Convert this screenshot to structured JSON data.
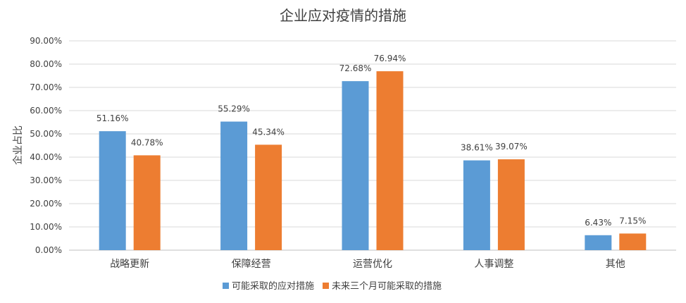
{
  "chart_data": {
    "type": "bar",
    "title": "企业应对疫情的措施",
    "xlabel": "",
    "ylabel": "企业占比",
    "categories": [
      "战略更新",
      "保障经营",
      "运营优化",
      "人事调整",
      "其他"
    ],
    "series": [
      {
        "name": "可能采取的应对措施",
        "values": [
          51.16,
          55.29,
          72.68,
          38.61,
          6.43
        ],
        "color": "#5b9bd5"
      },
      {
        "name": "未来三个月可能采取的措施",
        "values": [
          40.78,
          45.34,
          76.94,
          39.07,
          7.15
        ],
        "color": "#ed7d31"
      }
    ],
    "value_labels": [
      [
        "51.16%",
        "55.29%",
        "72.68%",
        "38.61%",
        "6.43%"
      ],
      [
        "40.78%",
        "45.34%",
        "76.94%",
        "39.07%",
        "7.15%"
      ]
    ],
    "ylim": [
      0,
      90
    ],
    "yticks": [
      "0.00%",
      "10.00%",
      "20.00%",
      "30.00%",
      "40.00%",
      "50.00%",
      "60.00%",
      "70.00%",
      "80.00%",
      "90.00%"
    ],
    "grid": true,
    "legend_position": "bottom"
  }
}
